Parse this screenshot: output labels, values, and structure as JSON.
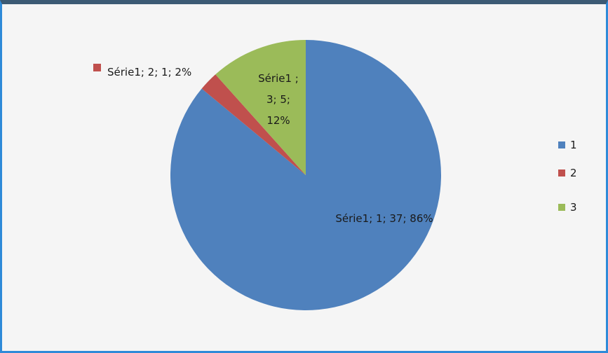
{
  "chart_data": {
    "type": "pie",
    "categories": [
      "1",
      "2",
      "3"
    ],
    "series": [
      {
        "name": "Série1",
        "values": [
          37,
          1,
          5
        ],
        "value_labels": [
          "Série1; 1; 37; 86%",
          "Série1; 2; 1; 2%",
          "Série1 ; 3; 5; 12%"
        ]
      }
    ],
    "colors": [
      "#4f81bd",
      "#c0504d",
      "#9bbb59"
    ],
    "legend": "right"
  }
}
